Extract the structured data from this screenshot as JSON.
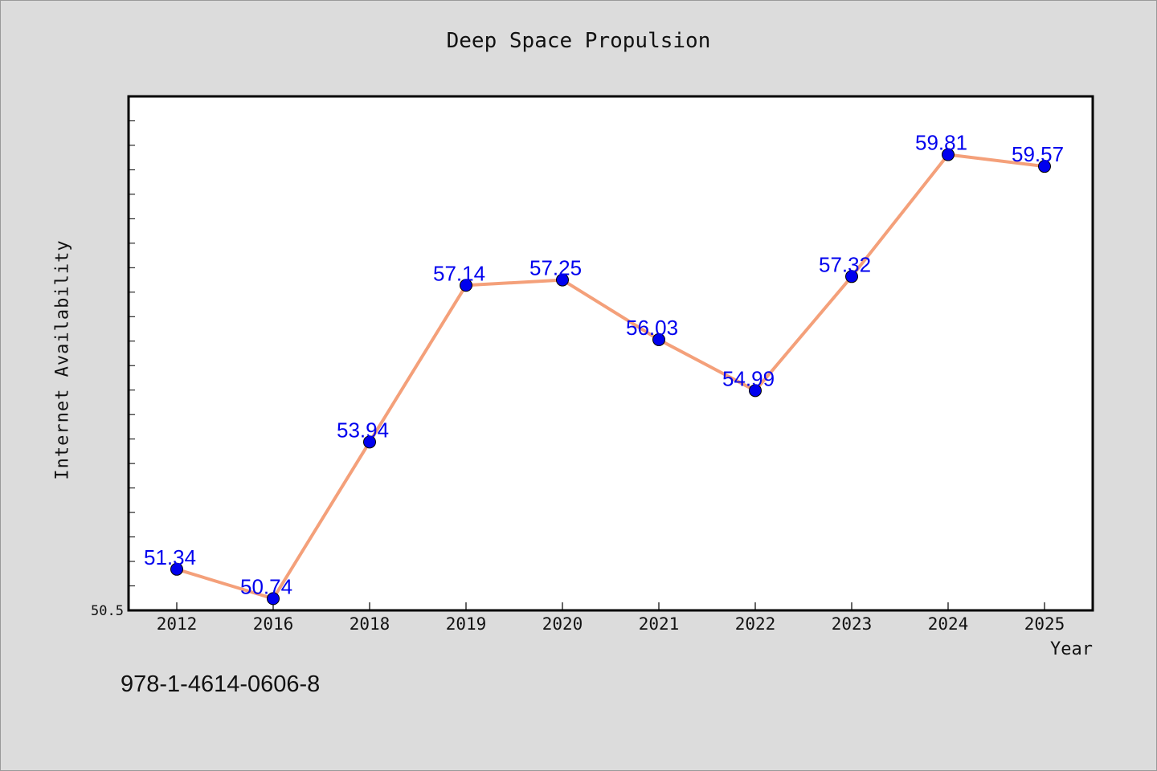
{
  "chart_data": {
    "type": "line",
    "title": "Deep Space Propulsion",
    "xlabel": "Year",
    "ylabel": "Internet Availability",
    "categories": [
      "2012",
      "2016",
      "2018",
      "2019",
      "2020",
      "2021",
      "2022",
      "2023",
      "2024",
      "2025"
    ],
    "series": [
      {
        "values": [
          51.34,
          50.74,
          53.94,
          57.14,
          57.25,
          56.03,
          54.99,
          57.32,
          59.81,
          59.57
        ],
        "data_labels": [
          "51.34",
          "50.74",
          "53.94",
          "57.14",
          "57.25",
          "56.03",
          "54.99",
          "57.32",
          "59.81",
          "59.57"
        ],
        "line_color": "#f4a07a",
        "marker_color": "#0000ee"
      }
    ],
    "ylim": [
      50.5,
      61.0
    ],
    "y_tick_label": "50.5",
    "grid": false,
    "legend": "none"
  },
  "footer_text": "978-1-4614-0606-8",
  "colors": {
    "background": "#dcdcdc",
    "plot_area": "#ffffff",
    "label_color": "#0000ee"
  }
}
